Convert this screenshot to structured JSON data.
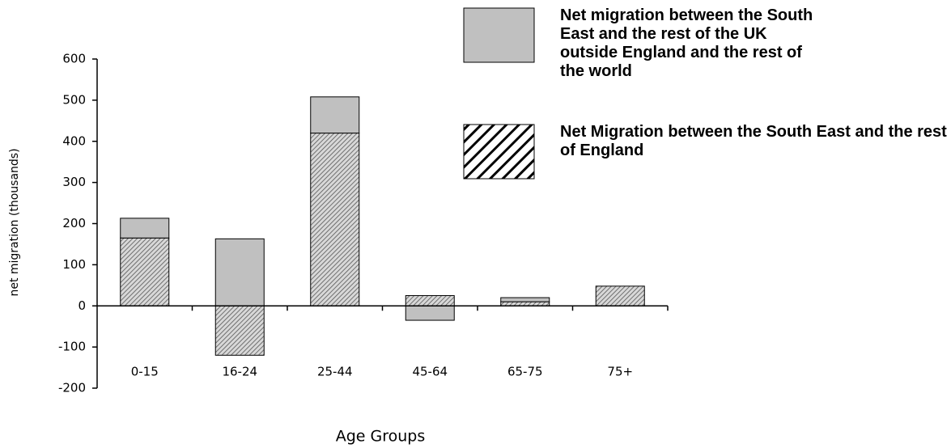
{
  "chart_data": {
    "type": "stacked_bar",
    "x_label": "Age Groups",
    "y_label": "net migration (thousands)",
    "categories": [
      "0-15",
      "16-24",
      "25-44",
      "45-64",
      "65-75",
      "75+"
    ],
    "series": [
      {
        "name": "Net migration between the South East and the rest of the UK outside England and the rest of the world",
        "color": "#c0c0c0",
        "fill_style": "solid",
        "values": [
          48,
          163,
          88,
          -35,
          10,
          0
        ]
      },
      {
        "name": "Net Migration between the South East and the rest of England",
        "color": "#000000",
        "fill_style": "hatch",
        "values": [
          165,
          -120,
          420,
          25,
          10,
          48
        ]
      }
    ],
    "ylim": [
      -200,
      600
    ],
    "yticks": [
      -200,
      -100,
      0,
      100,
      200,
      300,
      400,
      500,
      600
    ],
    "grid": false,
    "legend": "top-right"
  }
}
